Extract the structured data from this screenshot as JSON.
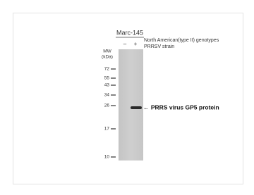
{
  "header": {
    "cell_line": "Marc-145",
    "lanes": [
      "–",
      "+"
    ],
    "condition": "North American(type II) genotypes",
    "condition_line2": "PRRSV strain"
  },
  "markers": {
    "title": "MW",
    "unit": "(kDa)",
    "labels": [
      "72",
      "55",
      "43",
      "34",
      "26",
      "17",
      "10"
    ]
  },
  "annotation": "← PRRS virus GP5 protein"
}
